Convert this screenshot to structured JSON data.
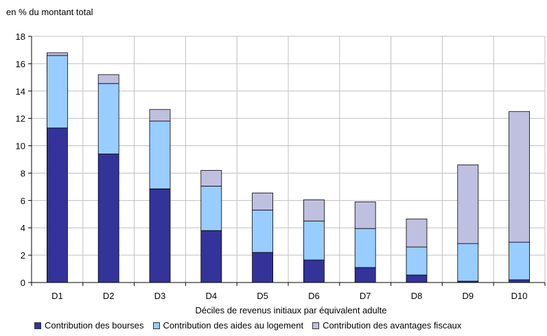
{
  "chart_data": {
    "type": "bar",
    "stacked": true,
    "unit_label": "en % du montant total",
    "xlabel": "Déciles de revenus initiaux par équivalent adulte",
    "ylabel": "",
    "categories": [
      "D1",
      "D2",
      "D3",
      "D4",
      "D5",
      "D6",
      "D7",
      "D8",
      "D9",
      "D10"
    ],
    "ylim": [
      0,
      18
    ],
    "yticks": [
      0,
      2,
      4,
      6,
      8,
      10,
      12,
      14,
      16,
      18
    ],
    "grid": true,
    "legend_position": "bottom",
    "series": [
      {
        "name": "Contribution des bourses",
        "color": "#333399",
        "values": [
          11.3,
          9.4,
          6.85,
          3.8,
          2.2,
          1.65,
          1.1,
          0.55,
          0.1,
          0.2
        ]
      },
      {
        "name": "Contribution des aides au logement",
        "color": "#99CCFF",
        "values": [
          5.3,
          5.15,
          4.95,
          3.25,
          3.1,
          2.85,
          2.85,
          2.05,
          2.75,
          2.75
        ]
      },
      {
        "name": "Contribution des avantages fiscaux",
        "color": "#BFBFDF",
        "values": [
          0.2,
          0.65,
          0.85,
          1.15,
          1.25,
          1.55,
          1.95,
          2.05,
          5.75,
          9.55
        ]
      }
    ]
  }
}
